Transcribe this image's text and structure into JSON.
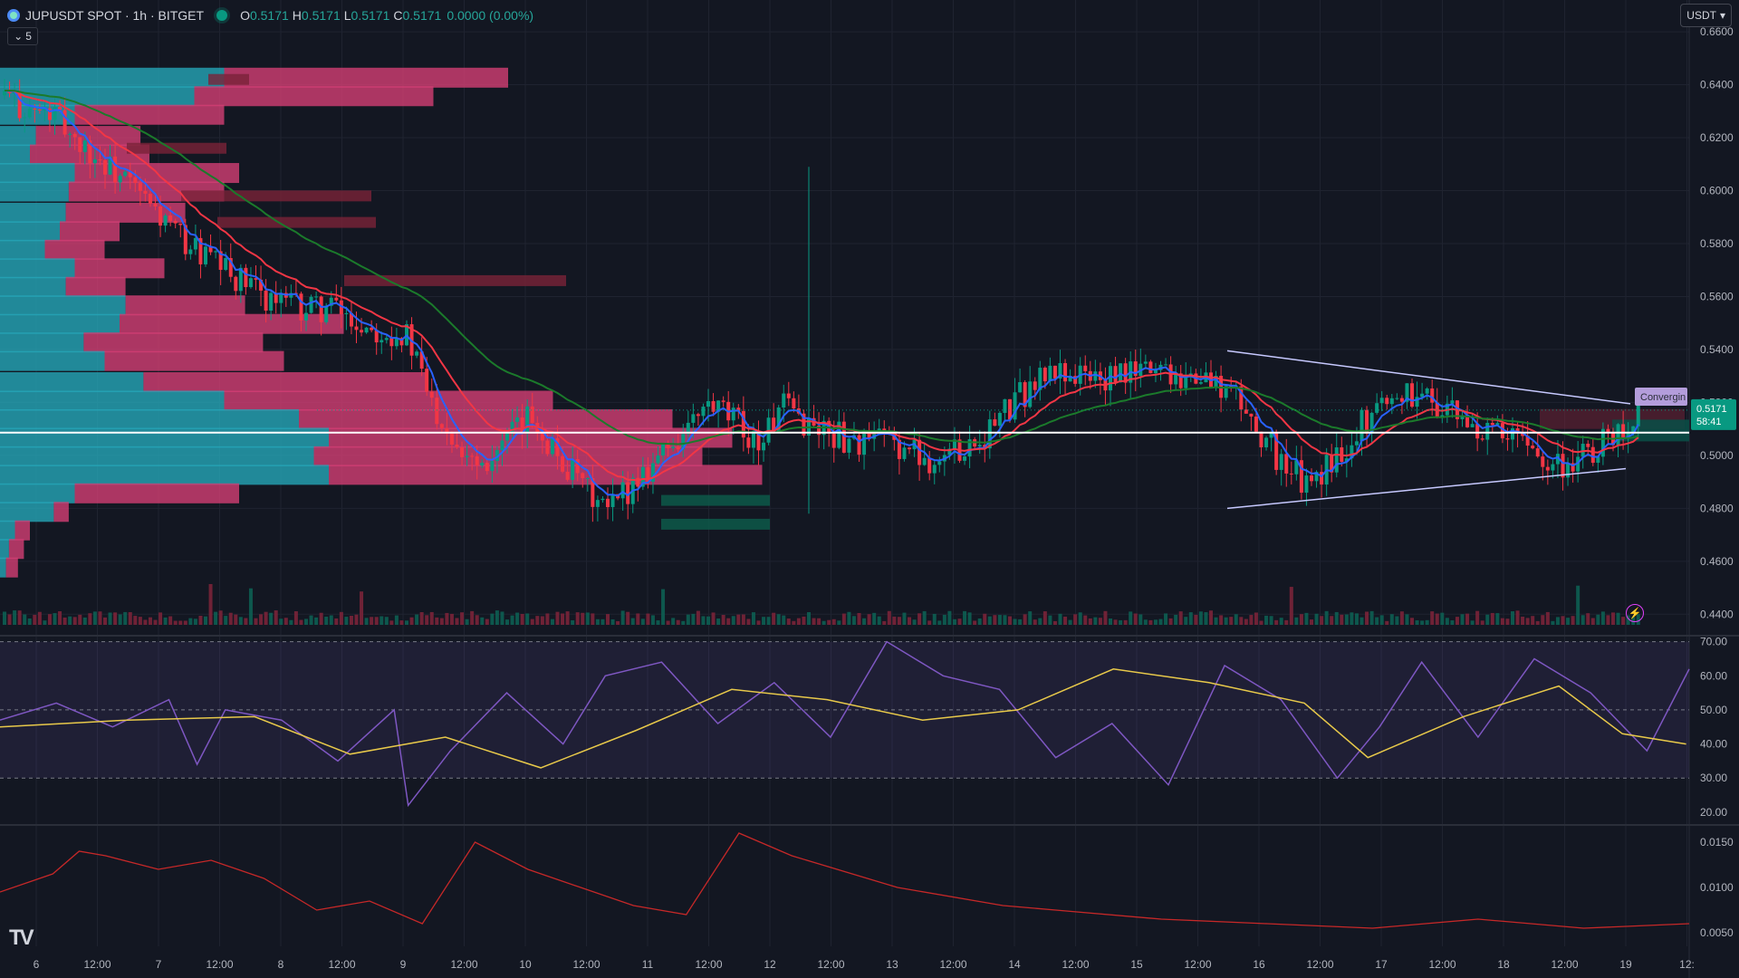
{
  "header": {
    "symbol_title": "JUPUSDT SPOT · 1h · BITGET",
    "ohlc": [
      {
        "k": "O",
        "v": "0.5171"
      },
      {
        "k": "H",
        "v": "0.5171"
      },
      {
        "k": "L",
        "v": "0.5171"
      },
      {
        "k": "C",
        "v": "0.5171"
      }
    ],
    "change": "0.0000 (0.00%)",
    "indicators_collapsed_count": "5",
    "currency": "USDT"
  },
  "price_label": "0.5171",
  "countdown": "58:41",
  "pattern_label": "Convergin",
  "chart_data": [
    {
      "type": "candlestick",
      "x_ticks": [
        "6",
        "12:00",
        "7",
        "12:00",
        "8",
        "12:00",
        "9",
        "12:00",
        "10",
        "12:00",
        "11",
        "12:00",
        "12",
        "12:00",
        "13",
        "12:00",
        "14",
        "12:00",
        "15",
        "12:00",
        "16",
        "12:00",
        "17",
        "12:00",
        "18",
        "12:00",
        "19",
        "12:"
      ],
      "y_ticks": [
        0.66,
        0.64,
        0.62,
        0.6,
        0.58,
        0.56,
        0.54,
        0.52,
        0.5,
        0.48,
        0.46,
        0.44
      ],
      "ylim": [
        0.436,
        0.672
      ],
      "series": [
        {
          "kind": "close",
          "points": [
            [
              0,
              0.636
            ],
            [
              5,
              0.63
            ],
            [
              10,
              0.628
            ],
            [
              15,
              0.618
            ],
            [
              20,
              0.61
            ],
            [
              25,
              0.602
            ],
            [
              30,
              0.592
            ],
            [
              35,
              0.582
            ],
            [
              40,
              0.575
            ],
            [
              45,
              0.568
            ],
            [
              50,
              0.562
            ],
            [
              55,
              0.558
            ],
            [
              60,
              0.555
            ],
            [
              65,
              0.556
            ],
            [
              70,
              0.55
            ],
            [
              75,
              0.548
            ],
            [
              80,
              0.545
            ],
            [
              85,
              0.52
            ],
            [
              90,
              0.505
            ],
            [
              95,
              0.498
            ],
            [
              100,
              0.505
            ],
            [
              105,
              0.515
            ],
            [
              110,
              0.5
            ],
            [
              115,
              0.488
            ],
            [
              120,
              0.478
            ],
            [
              125,
              0.49
            ],
            [
              130,
              0.5
            ],
            [
              135,
              0.508
            ],
            [
              140,
              0.518
            ],
            [
              145,
              0.513
            ],
            [
              150,
              0.505
            ],
            [
              155,
              0.518
            ],
            [
              160,
              0.512
            ],
            [
              165,
              0.508
            ],
            [
              170,
              0.505
            ],
            [
              175,
              0.506
            ],
            [
              180,
              0.502
            ],
            [
              185,
              0.498
            ],
            [
              190,
              0.503
            ],
            [
              195,
              0.508
            ],
            [
              200,
              0.518
            ],
            [
              205,
              0.528
            ],
            [
              210,
              0.532
            ],
            [
              215,
              0.53
            ],
            [
              220,
              0.528
            ],
            [
              225,
              0.532
            ],
            [
              230,
              0.534
            ],
            [
              235,
              0.53
            ],
            [
              240,
              0.528
            ],
            [
              245,
              0.522
            ],
            [
              250,
              0.508
            ],
            [
              255,
              0.495
            ],
            [
              260,
              0.488
            ],
            [
              265,
              0.5
            ],
            [
              270,
              0.512
            ],
            [
              275,
              0.522
            ],
            [
              280,
              0.524
            ],
            [
              285,
              0.52
            ],
            [
              290,
              0.512
            ],
            [
              295,
              0.508
            ],
            [
              300,
              0.506
            ],
            [
              305,
              0.502
            ],
            [
              310,
              0.496
            ],
            [
              315,
              0.5
            ],
            [
              320,
              0.508
            ],
            [
              325,
              0.516
            ]
          ]
        },
        {
          "kind": "ema_fast",
          "color": "#2962ff"
        },
        {
          "kind": "ema_mid",
          "color": "#f23645"
        },
        {
          "kind": "ema_slow",
          "color": "#1b7a2b"
        }
      ],
      "horizontal_line": 0.5086,
      "last_price": 0.5171,
      "volume_profile": [
        {
          "price": 0.643,
          "buy": 0.75,
          "sell": 0.95
        },
        {
          "price": 0.636,
          "buy": 0.65,
          "sell": 0.8
        },
        {
          "price": 0.629,
          "buy": 0.25,
          "sell": 0.5
        },
        {
          "price": 0.621,
          "buy": 0.12,
          "sell": 0.35
        },
        {
          "price": 0.614,
          "buy": 0.1,
          "sell": 0.4
        },
        {
          "price": 0.607,
          "buy": 0.25,
          "sell": 0.55
        },
        {
          "price": 0.6,
          "buy": 0.23,
          "sell": 0.52
        },
        {
          "price": 0.592,
          "buy": 0.22,
          "sell": 0.4
        },
        {
          "price": 0.585,
          "buy": 0.2,
          "sell": 0.2
        },
        {
          "price": 0.578,
          "buy": 0.15,
          "sell": 0.2
        },
        {
          "price": 0.571,
          "buy": 0.25,
          "sell": 0.3
        },
        {
          "price": 0.564,
          "buy": 0.22,
          "sell": 0.2
        },
        {
          "price": 0.557,
          "buy": 0.42,
          "sell": 0.4
        },
        {
          "price": 0.55,
          "buy": 0.4,
          "sell": 0.75
        },
        {
          "price": 0.543,
          "buy": 0.28,
          "sell": 0.6
        },
        {
          "price": 0.536,
          "buy": 0.35,
          "sell": 0.6
        },
        {
          "price": 0.528,
          "buy": 0.48,
          "sell": 0.95
        },
        {
          "price": 0.521,
          "buy": 0.75,
          "sell": 1.1
        },
        {
          "price": 0.514,
          "buy": 1.0,
          "sell": 1.25
        },
        {
          "price": 0.507,
          "buy": 1.1,
          "sell": 1.35
        },
        {
          "price": 0.5,
          "buy": 1.05,
          "sell": 1.3
        },
        {
          "price": 0.493,
          "buy": 1.1,
          "sell": 1.45
        },
        {
          "price": 0.486,
          "buy": 0.25,
          "sell": 0.55
        },
        {
          "price": 0.479,
          "buy": 0.18,
          "sell": 0.05
        },
        {
          "price": 0.472,
          "buy": 0.05,
          "sell": 0.05
        },
        {
          "price": 0.465,
          "buy": 0.03,
          "sell": 0.05
        },
        {
          "price": 0.458,
          "buy": 0.02,
          "sell": 0.04
        }
      ]
    },
    {
      "type": "line",
      "name": "RSI",
      "y_ticks": [
        70.0,
        60.0,
        50.0,
        40.0,
        30.0,
        20.0
      ],
      "ylim": [
        16.5,
        71.5
      ],
      "bands": [
        70,
        50,
        30
      ],
      "rsi": [
        [
          0,
          47
        ],
        [
          20,
          52
        ],
        [
          40,
          45
        ],
        [
          60,
          53
        ],
        [
          70,
          34
        ],
        [
          80,
          50
        ],
        [
          100,
          47
        ],
        [
          120,
          35
        ],
        [
          140,
          50
        ],
        [
          145,
          22
        ],
        [
          160,
          38
        ],
        [
          180,
          55
        ],
        [
          200,
          40
        ],
        [
          215,
          60
        ],
        [
          235,
          64
        ],
        [
          255,
          46
        ],
        [
          275,
          58
        ],
        [
          295,
          42
        ],
        [
          315,
          70
        ],
        [
          335,
          60
        ],
        [
          355,
          56
        ],
        [
          375,
          36
        ],
        [
          395,
          46
        ],
        [
          415,
          28
        ],
        [
          435,
          63
        ],
        [
          455,
          53
        ],
        [
          475,
          30
        ],
        [
          490,
          45
        ],
        [
          505,
          64
        ],
        [
          525,
          42
        ],
        [
          545,
          65
        ],
        [
          565,
          55
        ],
        [
          585,
          38
        ],
        [
          600,
          62
        ]
      ],
      "rsi_ma": [
        [
          0,
          45
        ],
        [
          40,
          47
        ],
        [
          80,
          48
        ],
        [
          110,
          37
        ],
        [
          140,
          42
        ],
        [
          170,
          33
        ],
        [
          200,
          44
        ],
        [
          230,
          56
        ],
        [
          260,
          53
        ],
        [
          290,
          47
        ],
        [
          320,
          50
        ],
        [
          350,
          62
        ],
        [
          380,
          58
        ],
        [
          410,
          52
        ],
        [
          430,
          36
        ],
        [
          460,
          48
        ],
        [
          490,
          57
        ],
        [
          510,
          43
        ],
        [
          530,
          40
        ]
      ]
    },
    {
      "type": "line",
      "name": "Volatility",
      "y_ticks": [
        0.015,
        0.01,
        0.005
      ],
      "ylim": [
        0.0035,
        0.0168
      ],
      "points": [
        [
          0,
          0.0095
        ],
        [
          10,
          0.0115
        ],
        [
          15,
          0.014
        ],
        [
          20,
          0.0135
        ],
        [
          30,
          0.012
        ],
        [
          40,
          0.013
        ],
        [
          50,
          0.011
        ],
        [
          60,
          0.0075
        ],
        [
          70,
          0.0085
        ],
        [
          80,
          0.006
        ],
        [
          90,
          0.015
        ],
        [
          100,
          0.012
        ],
        [
          110,
          0.01
        ],
        [
          120,
          0.008
        ],
        [
          130,
          0.007
        ],
        [
          140,
          0.016
        ],
        [
          150,
          0.0135
        ],
        [
          170,
          0.01
        ],
        [
          190,
          0.008
        ],
        [
          200,
          0.0075
        ],
        [
          220,
          0.0065
        ],
        [
          240,
          0.006
        ],
        [
          260,
          0.0055
        ],
        [
          280,
          0.0065
        ],
        [
          300,
          0.0055
        ],
        [
          320,
          0.006
        ]
      ]
    }
  ]
}
